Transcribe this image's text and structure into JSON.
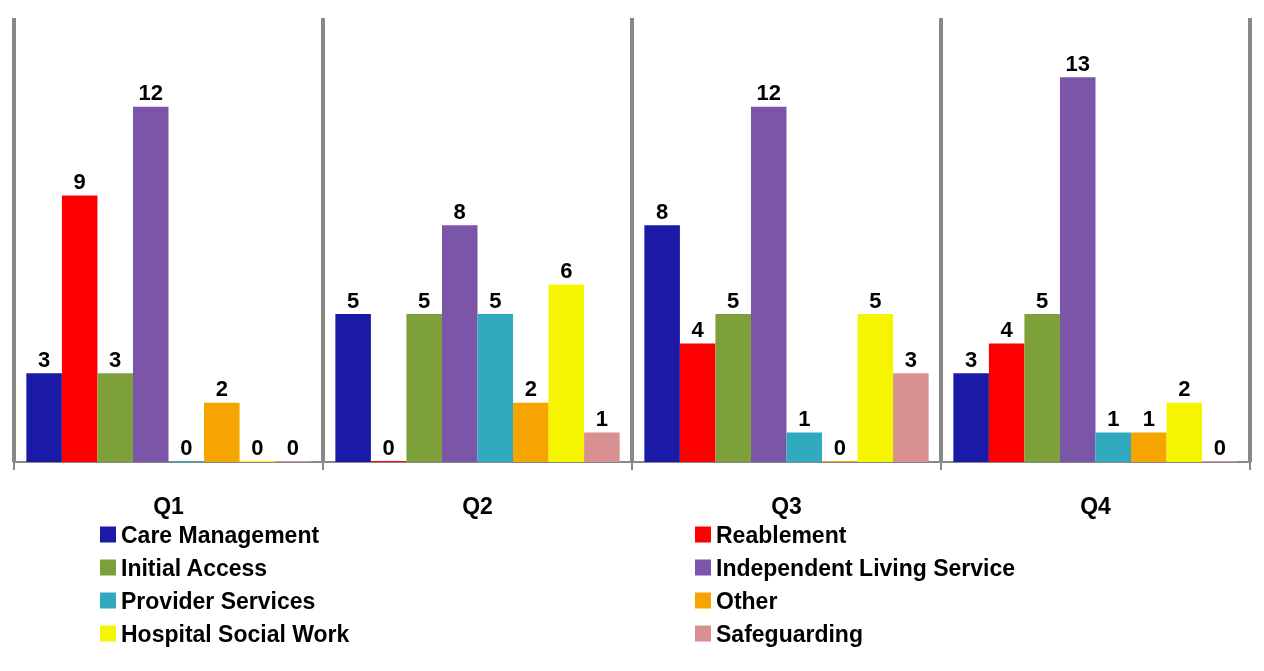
{
  "chart_data": {
    "type": "bar",
    "categories": [
      "Q1",
      "Q2",
      "Q3",
      "Q4"
    ],
    "series": [
      {
        "name": "Care Management",
        "color": "#1a1aa6",
        "values": [
          3,
          5,
          8,
          3
        ]
      },
      {
        "name": "Reablement",
        "color": "#ff0000",
        "values": [
          9,
          0,
          4,
          4
        ]
      },
      {
        "name": "Initial Access",
        "color": "#7da03a",
        "values": [
          3,
          5,
          5,
          5
        ]
      },
      {
        "name": "Independent Living Service",
        "color": "#7a55a8",
        "values": [
          12,
          8,
          12,
          13
        ]
      },
      {
        "name": "Provider Services",
        "color": "#31a9bf",
        "values": [
          0,
          5,
          1,
          1
        ]
      },
      {
        "name": "Other",
        "color": "#f5a400",
        "values": [
          2,
          2,
          0,
          1
        ]
      },
      {
        "name": "Hospital Social Work",
        "color": "#f5f500",
        "values": [
          0,
          6,
          5,
          2
        ]
      },
      {
        "name": "Safeguarding",
        "color": "#d89090",
        "values": [
          0,
          1,
          3,
          0
        ]
      }
    ],
    "data_labels": true,
    "grid": "x",
    "legend": "bottom"
  }
}
